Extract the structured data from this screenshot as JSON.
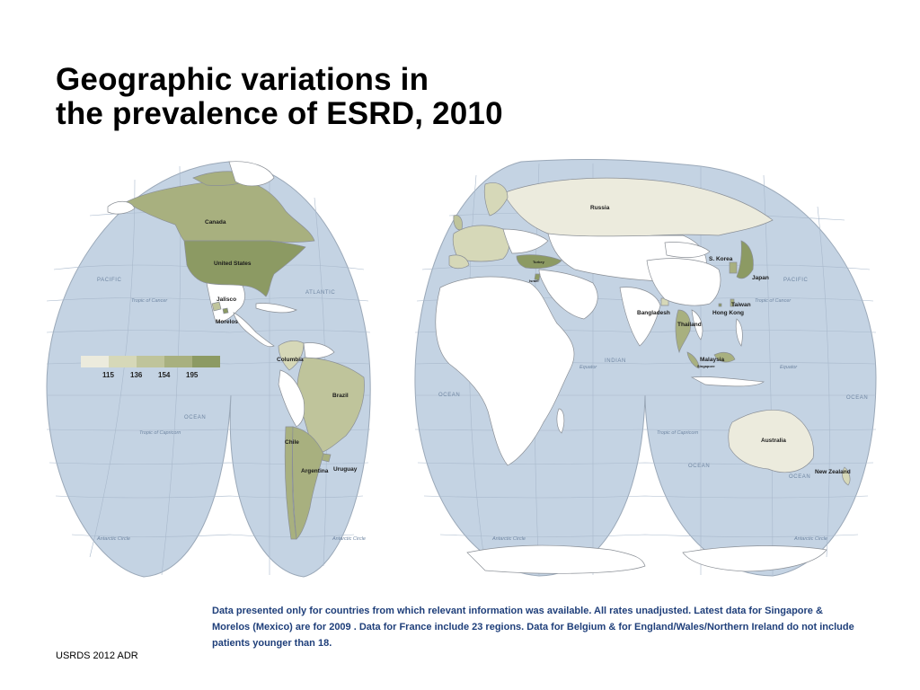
{
  "title": {
    "line1": "Geographic variations in",
    "line2": "the prevalence of ESRD, 2010"
  },
  "map": {
    "country_labels": {
      "canada": "Canada",
      "united_states": "United States",
      "jalisco": "Jalisco",
      "morelos": "Morelos",
      "colombia": "Columbia",
      "brazil": "Brazil",
      "chile": "Chile",
      "argentina": "Argentina",
      "uruguay": "Uruguay",
      "russia": "Russia",
      "turkey": "Turkey",
      "israel": "Israel",
      "bangladesh": "Bangladesh",
      "thailand": "Thailand",
      "hong_kong": "Hong Kong",
      "taiwan": "Taiwan",
      "s_korea": "S. Korea",
      "japan": "Japan",
      "malaysia": "Malaysia",
      "singapore": "Singapore",
      "australia": "Australia",
      "new_zealand": "New Zealand"
    },
    "ocean_labels": {
      "pacific_west": "PACIFIC",
      "atlantic": "ATLANTIC",
      "pacific_east": "PACIFIC",
      "ocean_sw": "OCEAN",
      "ocean_atl_s": "OCEAN",
      "indian": "INDIAN",
      "ocean_indian": "OCEAN",
      "ocean_east": "OCEAN",
      "ocean_au": "OCEAN",
      "equator_africa": "Equator",
      "equator_asia": "Equator"
    },
    "line_labels": {
      "cancer_west": "Tropic of Cancer",
      "cancer_east": "Tropic of Cancer",
      "capricorn_west": "Tropic of Capricorn",
      "capricorn_east": "Tropic of Capricorn",
      "antarctic_1": "Antarctic Circle",
      "antarctic_2": "Antarctic Circle",
      "antarctic_3": "Antarctic Circle",
      "antarctic_4": "Antarctic Circle"
    },
    "colors": {
      "ocean": "#c4d3e3",
      "land_no_data": "#ffffff",
      "border": "#8a8f96"
    }
  },
  "legend": {
    "ticks": [
      "115",
      "136",
      "154",
      "195"
    ],
    "colors": [
      "#ecebdd",
      "#d6d8b8",
      "#bfc49b",
      "#a8b07f",
      "#8c9a63"
    ]
  },
  "note": "Data presented only for countries from which relevant information was available. All rates unadjusted. Latest data for Singapore & Morelos (Mexico) are for 2009   . Data for France include 23 regions. Data for Belgium & for England/Wales/Northern Ireland do not include patients younger than 18.",
  "source": "USRDS 2012 ADR"
}
